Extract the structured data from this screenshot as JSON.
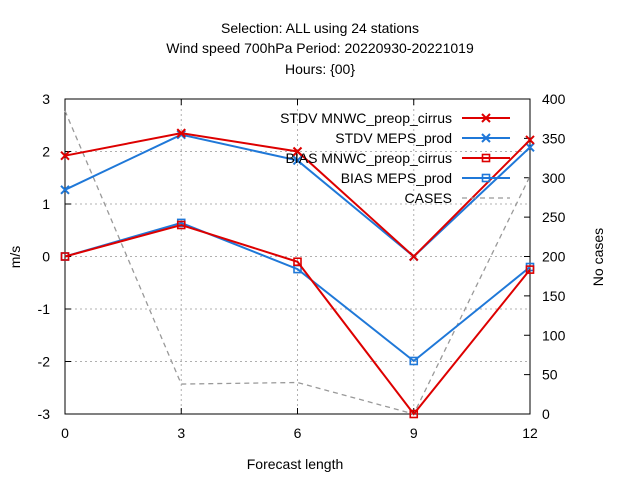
{
  "title_lines": [
    "Selection: ALL using    24 stations",
    "Wind speed 700hPa   Period: 20220930-20221019",
    "Hours: {00}"
  ],
  "chart_data": {
    "type": "line",
    "title": "Selection: ALL using    24 stations / Wind speed 700hPa   Period: 20220930-20221019 / Hours: {00}",
    "xlabel": "Forecast length",
    "ylabel": "m/s",
    "y2label": "No cases",
    "x": [
      0,
      3,
      6,
      9,
      12
    ],
    "xticks": [
      "0",
      "3",
      "6",
      "9",
      "12"
    ],
    "xlim": [
      0,
      12
    ],
    "ylim": [
      -3,
      3
    ],
    "yticks": [
      "-3",
      "-2",
      "-1",
      "0",
      "1",
      "2",
      "3"
    ],
    "y2lim": [
      0,
      400
    ],
    "y2ticks": [
      "0",
      "50",
      "100",
      "150",
      "200",
      "250",
      "300",
      "350",
      "400"
    ],
    "grid": true,
    "legend_position": "top-right",
    "series": [
      {
        "name": "STDV MNWC_preop_cirrus",
        "axis": "y",
        "color": "#dd0000",
        "marker": "x",
        "values": [
          1.92,
          2.35,
          2.0,
          0.0,
          2.22
        ]
      },
      {
        "name": "STDV MEPS_prod",
        "axis": "y",
        "color": "#1f78d8",
        "marker": "x",
        "values": [
          1.27,
          2.32,
          1.83,
          0.0,
          2.08
        ]
      },
      {
        "name": "BIAS MNWC_preop_cirrus",
        "axis": "y",
        "color": "#dd0000",
        "marker": "square",
        "values": [
          0.0,
          0.6,
          -0.1,
          -3.0,
          -0.25
        ]
      },
      {
        "name": "BIAS MEPS_prod",
        "axis": "y",
        "color": "#1f78d8",
        "marker": "square",
        "values": [
          0.0,
          0.64,
          -0.24,
          -1.99,
          -0.2
        ]
      },
      {
        "name": "CASES",
        "axis": "y2",
        "color": "#999999",
        "marker": "none",
        "dashed": true,
        "values": [
          385,
          38,
          40,
          0,
          302
        ]
      }
    ]
  }
}
